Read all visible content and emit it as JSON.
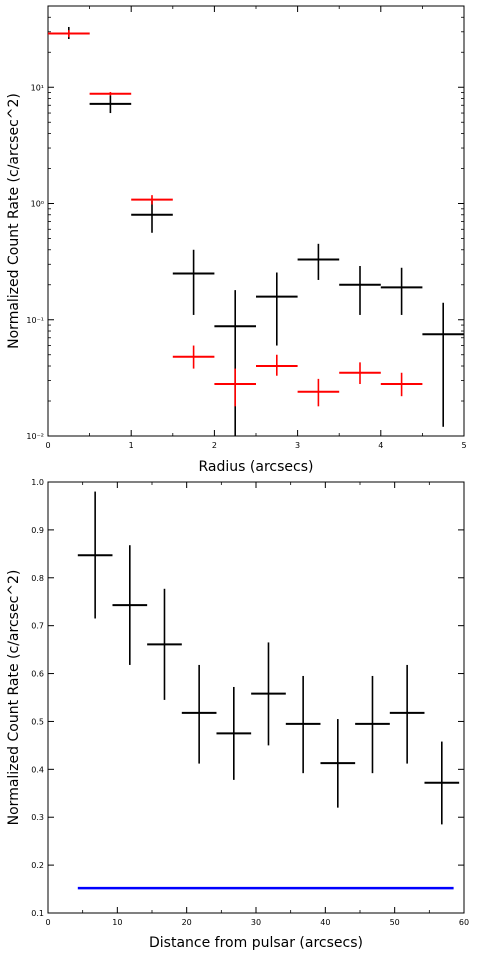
{
  "chart_data": [
    {
      "type": "scatter",
      "subtype": "errorbar",
      "xlabel": "Radius (arcsecs)",
      "ylabel": "Normalized Count Rate (c/arcsec^2)",
      "xlim": [
        0,
        5
      ],
      "ylim": [
        0.01,
        50
      ],
      "yscale": "log",
      "grid": false,
      "x_ticks": [
        {
          "value": 0,
          "label": "0"
        },
        {
          "value": 1,
          "label": "1"
        },
        {
          "value": 2,
          "label": "2"
        },
        {
          "value": 3,
          "label": "3"
        },
        {
          "value": 4,
          "label": "4"
        },
        {
          "value": 5,
          "label": "5"
        }
      ],
      "y_ticks": [
        {
          "value": 0.01,
          "label": "10⁻²"
        },
        {
          "value": 0.1,
          "label": "10⁻¹"
        },
        {
          "value": 1,
          "label": "10⁰"
        },
        {
          "value": 10,
          "label": "10¹"
        }
      ],
      "series": [
        {
          "color": "#000000",
          "points": [
            {
              "x": 0.25,
              "xerr": 0.25,
              "y": 29,
              "ylo": 26,
              "yhi": 33
            },
            {
              "x": 0.75,
              "xerr": 0.25,
              "y": 7.2,
              "ylo": 6.0,
              "yhi": 8.5
            },
            {
              "x": 1.25,
              "xerr": 0.25,
              "y": 0.8,
              "ylo": 0.56,
              "yhi": 1.05
            },
            {
              "x": 1.75,
              "xerr": 0.25,
              "y": 0.25,
              "ylo": 0.11,
              "yhi": 0.4
            },
            {
              "x": 2.25,
              "xerr": 0.25,
              "y": 0.088,
              "ylo": 0.009,
              "yhi": 0.18
            },
            {
              "x": 2.75,
              "xerr": 0.25,
              "y": 0.158,
              "ylo": 0.06,
              "yhi": 0.255
            },
            {
              "x": 3.25,
              "xerr": 0.25,
              "y": 0.33,
              "ylo": 0.22,
              "yhi": 0.45
            },
            {
              "x": 3.75,
              "xerr": 0.25,
              "y": 0.2,
              "ylo": 0.11,
              "yhi": 0.29
            },
            {
              "x": 4.25,
              "xerr": 0.25,
              "y": 0.19,
              "ylo": 0.11,
              "yhi": 0.28
            },
            {
              "x": 4.75,
              "xerr": 0.25,
              "y": 0.075,
              "ylo": 0.012,
              "yhi": 0.14
            }
          ]
        },
        {
          "color": "#ff0000",
          "points": [
            {
              "x": 0.25,
              "xerr": 0.25,
              "y": 29,
              "ylo": 27,
              "yhi": 31
            },
            {
              "x": 0.75,
              "xerr": 0.25,
              "y": 8.8,
              "ylo": 8.5,
              "yhi": 9.1
            },
            {
              "x": 1.25,
              "xerr": 0.25,
              "y": 1.08,
              "ylo": 0.98,
              "yhi": 1.18
            },
            {
              "x": 1.75,
              "xerr": 0.25,
              "y": 0.048,
              "ylo": 0.038,
              "yhi": 0.06
            },
            {
              "x": 2.25,
              "xerr": 0.25,
              "y": 0.028,
              "ylo": 0.018,
              "yhi": 0.038
            },
            {
              "x": 2.75,
              "xerr": 0.25,
              "y": 0.04,
              "ylo": 0.033,
              "yhi": 0.05
            },
            {
              "x": 3.25,
              "xerr": 0.25,
              "y": 0.024,
              "ylo": 0.018,
              "yhi": 0.031
            },
            {
              "x": 3.75,
              "xerr": 0.25,
              "y": 0.035,
              "ylo": 0.028,
              "yhi": 0.043
            },
            {
              "x": 4.25,
              "xerr": 0.25,
              "y": 0.028,
              "ylo": 0.022,
              "yhi": 0.035
            }
          ]
        }
      ]
    },
    {
      "type": "scatter",
      "subtype": "errorbar",
      "xlabel": "Distance from pulsar (arcsecs)",
      "ylabel": "Normalized Count Rate (c/arcsec^2)",
      "xlim": [
        0,
        60
      ],
      "ylim": [
        0.1,
        1.0
      ],
      "yscale": "linear",
      "grid": false,
      "x_ticks": [
        {
          "value": 0,
          "label": "0"
        },
        {
          "value": 10,
          "label": "10"
        },
        {
          "value": 20,
          "label": "20"
        },
        {
          "value": 30,
          "label": "30"
        },
        {
          "value": 40,
          "label": "40"
        },
        {
          "value": 50,
          "label": "50"
        },
        {
          "value": 60,
          "label": "60"
        }
      ],
      "y_ticks": [
        {
          "value": 0.1,
          "label": "0.1"
        },
        {
          "value": 0.2,
          "label": "0.2"
        },
        {
          "value": 0.3,
          "label": "0.3"
        },
        {
          "value": 0.4,
          "label": "0.4"
        },
        {
          "value": 0.5,
          "label": "0.5"
        },
        {
          "value": 0.6,
          "label": "0.6"
        },
        {
          "value": 0.7,
          "label": "0.7"
        },
        {
          "value": 0.8,
          "label": "0.8"
        },
        {
          "value": 0.9,
          "label": "0.9"
        },
        {
          "value": 1.0,
          "label": "1.0"
        }
      ],
      "series": [
        {
          "color": "#000000",
          "points": [
            {
              "x": 6.8,
              "xerr": 2.5,
              "y": 0.847,
              "ylo": 0.715,
              "yhi": 0.98
            },
            {
              "x": 11.8,
              "xerr": 2.5,
              "y": 0.743,
              "ylo": 0.618,
              "yhi": 0.868
            },
            {
              "x": 16.8,
              "xerr": 2.5,
              "y": 0.661,
              "ylo": 0.545,
              "yhi": 0.777
            },
            {
              "x": 21.8,
              "xerr": 2.5,
              "y": 0.518,
              "ylo": 0.412,
              "yhi": 0.618
            },
            {
              "x": 26.8,
              "xerr": 2.5,
              "y": 0.475,
              "ylo": 0.378,
              "yhi": 0.572
            },
            {
              "x": 31.8,
              "xerr": 2.5,
              "y": 0.558,
              "ylo": 0.45,
              "yhi": 0.665
            },
            {
              "x": 36.8,
              "xerr": 2.5,
              "y": 0.495,
              "ylo": 0.392,
              "yhi": 0.595
            },
            {
              "x": 41.8,
              "xerr": 2.5,
              "y": 0.413,
              "ylo": 0.32,
              "yhi": 0.505
            },
            {
              "x": 46.8,
              "xerr": 2.5,
              "y": 0.495,
              "ylo": 0.392,
              "yhi": 0.595
            },
            {
              "x": 51.8,
              "xerr": 2.5,
              "y": 0.518,
              "ylo": 0.412,
              "yhi": 0.618
            },
            {
              "x": 56.8,
              "xerr": 2.5,
              "y": 0.372,
              "ylo": 0.285,
              "yhi": 0.458
            }
          ]
        }
      ],
      "reference_lines": [
        {
          "color": "#0000ff",
          "y": 0.152,
          "x_from": 4.3,
          "x_to": 58.5
        }
      ]
    }
  ]
}
